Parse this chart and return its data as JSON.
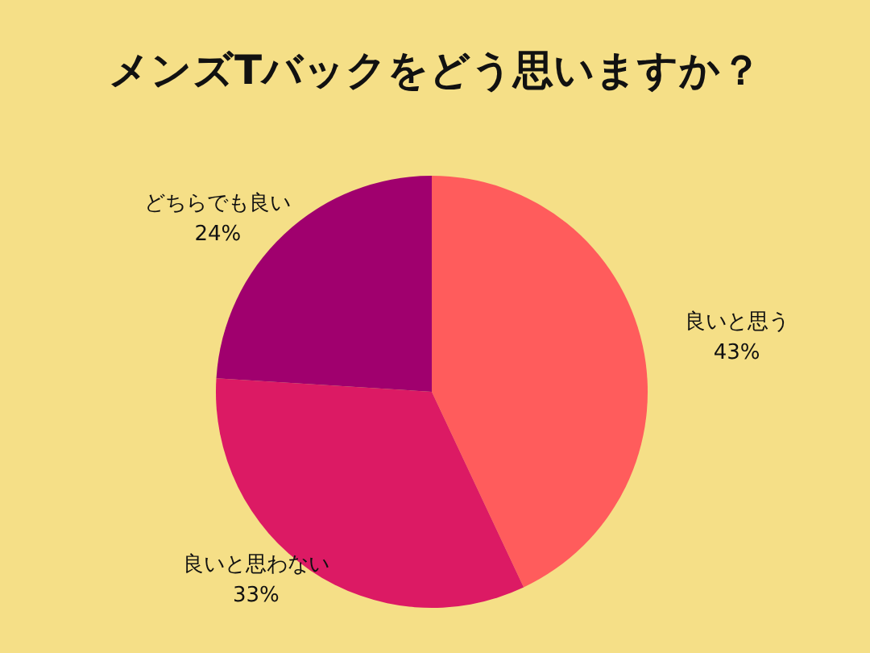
{
  "chart_data": {
    "type": "pie",
    "title": "メンズTバックをどう思いますか？",
    "categories": [
      "良いと思う",
      "良いと思わない",
      "どちらでも良い"
    ],
    "values": [
      43,
      33,
      24
    ],
    "value_labels": [
      "43%",
      "33%",
      "24%"
    ],
    "colors": [
      "#ff5c5c",
      "#dc1a64",
      "#a0006e"
    ]
  }
}
